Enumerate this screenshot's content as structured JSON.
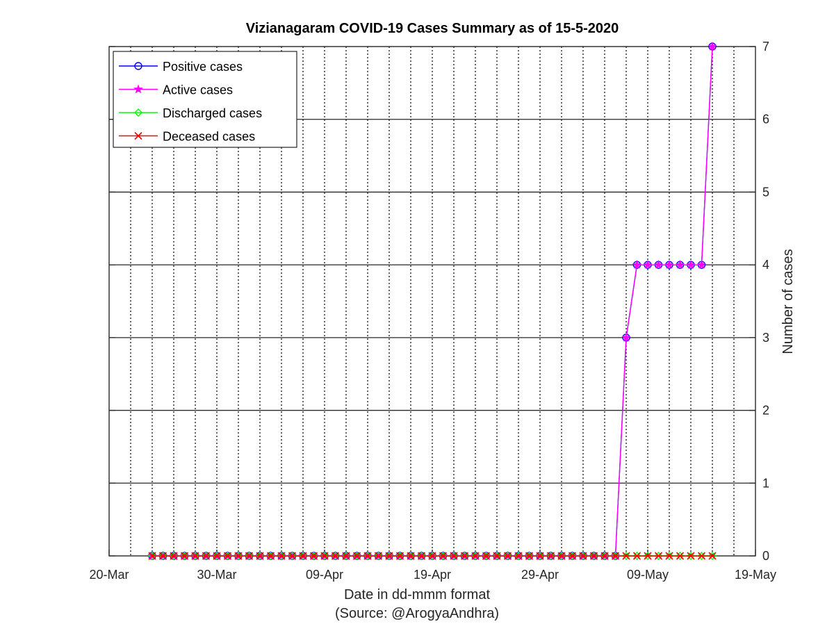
{
  "chart_data": {
    "type": "line",
    "title": "Vizianagaram COVID-19 Cases Summary as of 15-5-2020",
    "xlabel": "Date in dd-mmm format",
    "xlabel_source": "(Source: @ArogyaAndhra)",
    "ylabel": "Number of cases",
    "x_tick_labels": [
      "20-Mar",
      "30-Mar",
      "09-Apr",
      "19-Apr",
      "29-Apr",
      "09-May",
      "19-May"
    ],
    "xlim": [
      "2020-03-20",
      "2020-05-19"
    ],
    "ylim": [
      0,
      7
    ],
    "y_ticks": [
      0,
      1,
      2,
      3,
      4,
      5,
      6,
      7
    ],
    "y_axis_position": "right",
    "grid": true,
    "legend_position": "top-left",
    "x": [
      "2020-03-24",
      "2020-03-25",
      "2020-03-26",
      "2020-03-27",
      "2020-03-28",
      "2020-03-29",
      "2020-03-30",
      "2020-03-31",
      "2020-04-01",
      "2020-04-02",
      "2020-04-03",
      "2020-04-04",
      "2020-04-05",
      "2020-04-06",
      "2020-04-07",
      "2020-04-08",
      "2020-04-09",
      "2020-04-10",
      "2020-04-11",
      "2020-04-12",
      "2020-04-13",
      "2020-04-14",
      "2020-04-15",
      "2020-04-16",
      "2020-04-17",
      "2020-04-18",
      "2020-04-19",
      "2020-04-20",
      "2020-04-21",
      "2020-04-22",
      "2020-04-23",
      "2020-04-24",
      "2020-04-25",
      "2020-04-26",
      "2020-04-27",
      "2020-04-28",
      "2020-04-29",
      "2020-04-30",
      "2020-05-01",
      "2020-05-02",
      "2020-05-03",
      "2020-05-04",
      "2020-05-05",
      "2020-05-06",
      "2020-05-07",
      "2020-05-08",
      "2020-05-09",
      "2020-05-10",
      "2020-05-11",
      "2020-05-12",
      "2020-05-13",
      "2020-05-14",
      "2020-05-15"
    ],
    "series": [
      {
        "name": "Positive cases",
        "color": "#0000ff",
        "marker": "circle",
        "values": [
          0,
          0,
          0,
          0,
          0,
          0,
          0,
          0,
          0,
          0,
          0,
          0,
          0,
          0,
          0,
          0,
          0,
          0,
          0,
          0,
          0,
          0,
          0,
          0,
          0,
          0,
          0,
          0,
          0,
          0,
          0,
          0,
          0,
          0,
          0,
          0,
          0,
          0,
          0,
          0,
          0,
          0,
          0,
          0,
          3,
          4,
          4,
          4,
          4,
          4,
          4,
          4,
          7
        ]
      },
      {
        "name": "Active cases",
        "color": "#ff00ff",
        "marker": "star",
        "values": [
          0,
          0,
          0,
          0,
          0,
          0,
          0,
          0,
          0,
          0,
          0,
          0,
          0,
          0,
          0,
          0,
          0,
          0,
          0,
          0,
          0,
          0,
          0,
          0,
          0,
          0,
          0,
          0,
          0,
          0,
          0,
          0,
          0,
          0,
          0,
          0,
          0,
          0,
          0,
          0,
          0,
          0,
          0,
          0,
          3,
          4,
          4,
          4,
          4,
          4,
          4,
          4,
          7
        ]
      },
      {
        "name": "Discharged cases",
        "color": "#00ff00",
        "marker": "diamond",
        "values": [
          0,
          0,
          0,
          0,
          0,
          0,
          0,
          0,
          0,
          0,
          0,
          0,
          0,
          0,
          0,
          0,
          0,
          0,
          0,
          0,
          0,
          0,
          0,
          0,
          0,
          0,
          0,
          0,
          0,
          0,
          0,
          0,
          0,
          0,
          0,
          0,
          0,
          0,
          0,
          0,
          0,
          0,
          0,
          0,
          0,
          0,
          0,
          0,
          0,
          0,
          0,
          0,
          0
        ]
      },
      {
        "name": "Deceased cases",
        "color": "#ff0000",
        "marker": "x",
        "values": [
          0,
          0,
          0,
          0,
          0,
          0,
          0,
          0,
          0,
          0,
          0,
          0,
          0,
          0,
          0,
          0,
          0,
          0,
          0,
          0,
          0,
          0,
          0,
          0,
          0,
          0,
          0,
          0,
          0,
          0,
          0,
          0,
          0,
          0,
          0,
          0,
          0,
          0,
          0,
          0,
          0,
          0,
          0,
          0,
          0,
          0,
          0,
          0,
          0,
          0,
          0,
          0,
          0
        ]
      }
    ]
  }
}
